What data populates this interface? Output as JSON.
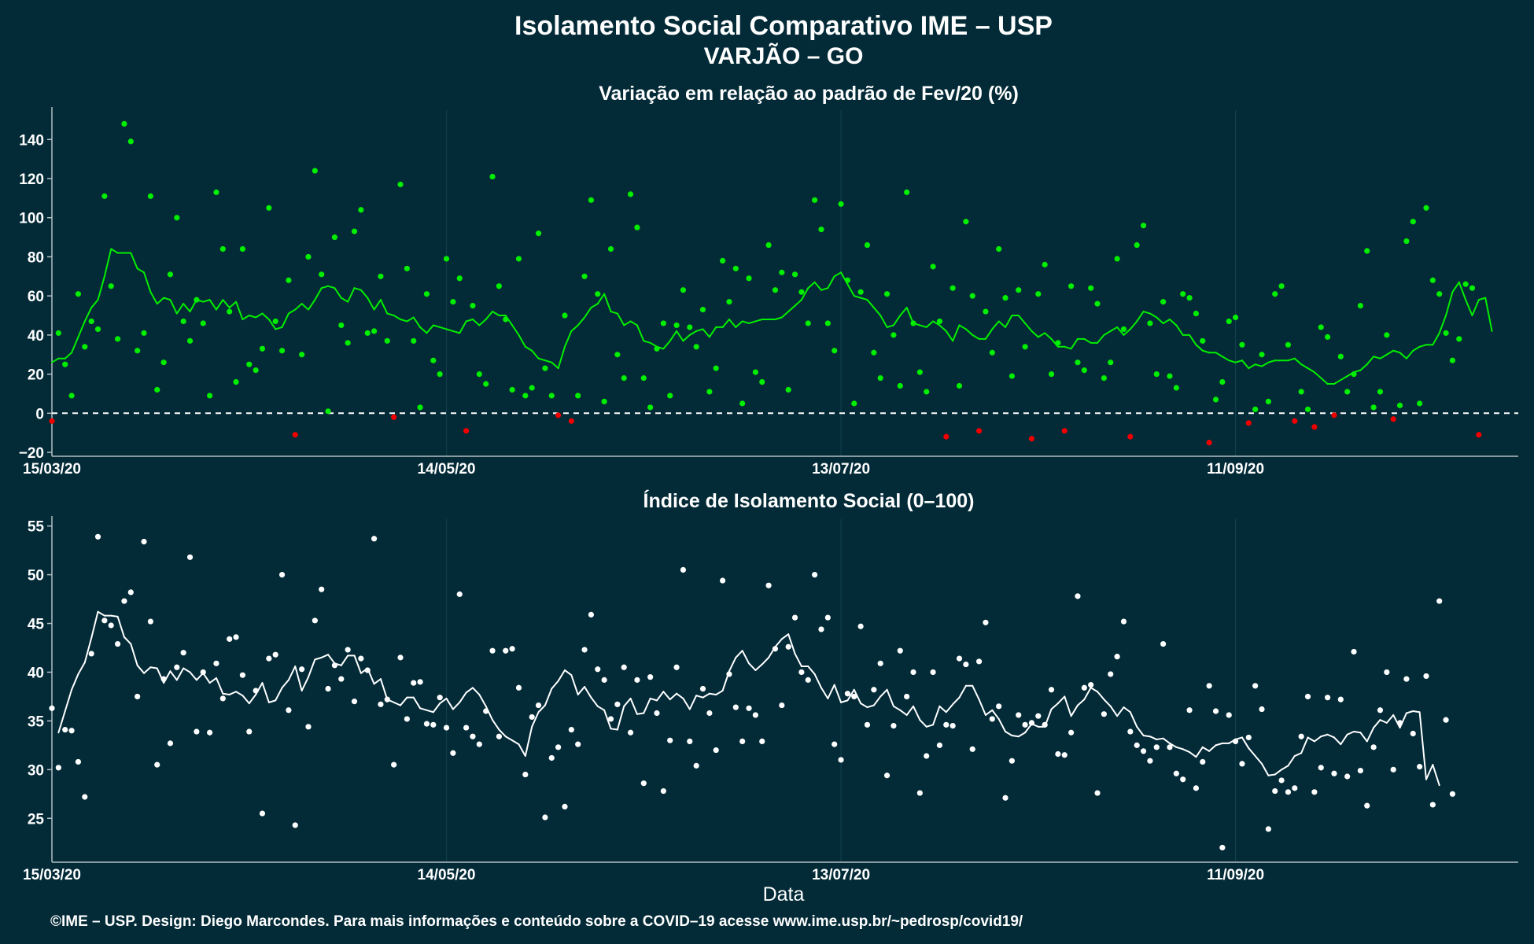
{
  "title": "Isolamento Social Comparativo IME – USP",
  "subtitle": "VARJÃO – GO",
  "x_axis_label": "Data",
  "footer": "©IME – USP. Design: Diego Marcondes. Para mais informações e conteúdo sobre a COVID–19 acesse www.ime.usp.br/~pedrosp/covid19/",
  "colors": {
    "background": "#022a37",
    "positive": "#00ee00",
    "negative": "#ee0000",
    "index": "#ffffff",
    "zero_line": "#ffffff"
  },
  "chart_data": [
    {
      "type": "scatter",
      "title": "Variação em relação ao padrão de Fev/20 (%)",
      "xlim": [
        "2020-03-15",
        "2020-10-24"
      ],
      "x_ticks": [
        "15/03/20",
        "14/05/20",
        "13/07/20",
        "11/09/20"
      ],
      "ylim": [
        -22,
        155
      ],
      "y_ticks": [
        -20,
        0,
        20,
        40,
        60,
        80,
        100,
        120,
        140
      ],
      "reference_line": 0,
      "points_start": "2020-03-15",
      "moving_average_start": "2020-03-15",
      "points": [
        -4,
        41,
        25,
        9,
        61,
        34,
        47,
        43,
        111,
        65,
        38,
        148,
        139,
        32,
        41,
        111,
        12,
        26,
        71,
        100,
        47,
        37,
        58,
        46,
        9,
        113,
        84,
        52,
        16,
        84,
        25,
        22,
        33,
        105,
        47,
        32,
        68,
        -11,
        30,
        80,
        124,
        71,
        1,
        90,
        45,
        36,
        93,
        104,
        41,
        42,
        70,
        37,
        -2,
        117,
        74,
        37,
        3,
        61,
        27,
        20,
        79,
        57,
        69,
        -9,
        55,
        20,
        15,
        121,
        65,
        48,
        12,
        79,
        9,
        13,
        92,
        23,
        9,
        -1,
        50,
        -4,
        9,
        70,
        109,
        61,
        6,
        84,
        30,
        18,
        112,
        95,
        18,
        3,
        33,
        46,
        9,
        45,
        63,
        44,
        34,
        53,
        11,
        23,
        78,
        57,
        74,
        5,
        69,
        21,
        16,
        86,
        63,
        72,
        12,
        71,
        62,
        46,
        109,
        94,
        46,
        32,
        107,
        68,
        5,
        62,
        86,
        31,
        18,
        61,
        40,
        14,
        113,
        46,
        21,
        11,
        75,
        47,
        -12,
        64,
        14,
        98,
        60,
        -9,
        52,
        31,
        84,
        59,
        19,
        63,
        34,
        -13,
        61,
        76,
        20,
        36,
        -9,
        65,
        26,
        22,
        64,
        56,
        18,
        26,
        79,
        43,
        -12,
        86,
        96,
        46,
        20,
        57,
        19,
        13,
        61,
        59,
        51,
        37,
        -15,
        7,
        16,
        47,
        49,
        35,
        -5,
        2,
        30,
        6,
        61,
        65,
        35,
        -4,
        11,
        2,
        -7,
        44,
        39,
        -1,
        29,
        11,
        20,
        55,
        83,
        3,
        11,
        40,
        -3,
        4,
        88,
        98,
        5,
        105,
        68,
        61,
        41,
        27,
        38,
        66,
        64,
        -11
      ],
      "moving_average": [
        26,
        28,
        28,
        31,
        39,
        47,
        54,
        58,
        70,
        84,
        82,
        82,
        82,
        74,
        72,
        62,
        56,
        59,
        58,
        51,
        56,
        52,
        58,
        57,
        58,
        53,
        58,
        54,
        57,
        48,
        50,
        49,
        51,
        48,
        43,
        44,
        51,
        53,
        56,
        53,
        58,
        64,
        65,
        64,
        59,
        57,
        64,
        63,
        59,
        53,
        58,
        51,
        50,
        48,
        47,
        49,
        44,
        41,
        45,
        44,
        43,
        42,
        41,
        47,
        48,
        45,
        48,
        52,
        50,
        50,
        45,
        40,
        34,
        32,
        28,
        27,
        26,
        23,
        34,
        42,
        45,
        49,
        54,
        56,
        61,
        52,
        51,
        45,
        47,
        45,
        37,
        36,
        34,
        33,
        37,
        42,
        37,
        40,
        42,
        43,
        39,
        44,
        44,
        48,
        44,
        47,
        46,
        47,
        48,
        48,
        48,
        49,
        52,
        55,
        58,
        64,
        67,
        63,
        64,
        70,
        72,
        66,
        60,
        59,
        58,
        54,
        50,
        44,
        45,
        50,
        54,
        46,
        45,
        44,
        47,
        45,
        42,
        37,
        45,
        43,
        40,
        38,
        38,
        43,
        47,
        44,
        50,
        50,
        46,
        42,
        39,
        41,
        38,
        34,
        34,
        33,
        38,
        38,
        36,
        36,
        40,
        42,
        44,
        40,
        43,
        47,
        52,
        51,
        49,
        46,
        48,
        45,
        40,
        40,
        35,
        32,
        31,
        31,
        29,
        27,
        26,
        27,
        23,
        25,
        24,
        26,
        27,
        27,
        27,
        28,
        25,
        23,
        21,
        18,
        15,
        15,
        17,
        19,
        21,
        22,
        25,
        29,
        28,
        30,
        32,
        31,
        28,
        32,
        34,
        35,
        35,
        41,
        50,
        62,
        67,
        58,
        50,
        58,
        59,
        42
      ]
    },
    {
      "type": "scatter",
      "title": "Índice de Isolamento Social (0–100)",
      "xlim": [
        "2020-03-15",
        "2020-10-24"
      ],
      "x_ticks": [
        "15/03/20",
        "14/05/20",
        "13/07/20",
        "11/09/20"
      ],
      "ylim": [
        20.5,
        55.7
      ],
      "y_ticks": [
        25,
        30,
        35,
        40,
        45,
        50,
        55
      ],
      "points_start": "2020-03-15",
      "moving_average_start": "2020-03-16",
      "points": [
        36.3,
        30.2,
        34.1,
        34,
        30.8,
        27.2,
        41.9,
        53.9,
        45.3,
        44.8,
        42.9,
        47.3,
        48.2,
        37.5,
        53.4,
        45.2,
        30.5,
        39.3,
        32.7,
        40.5,
        42,
        51.8,
        33.9,
        40,
        33.8,
        40.9,
        37.3,
        43.4,
        43.6,
        39.7,
        33.9,
        38.1,
        25.5,
        41.4,
        41.8,
        50,
        36.1,
        24.3,
        40.3,
        34.4,
        45.3,
        48.5,
        38.3,
        40.7,
        39.3,
        42.3,
        37,
        41.4,
        40.2,
        53.7,
        36.7,
        37.2,
        30.5,
        41.5,
        35.2,
        38.9,
        39,
        34.7,
        34.6,
        37.4,
        34.3,
        31.7,
        48,
        34.3,
        33.4,
        32.6,
        36,
        42.2,
        33.4,
        42.2,
        42.4,
        38.4,
        29.5,
        35.4,
        36.6,
        25.1,
        31.2,
        32.3,
        26.2,
        34.1,
        32.6,
        42.3,
        45.9,
        40.3,
        39.2,
        35.2,
        36.7,
        40.5,
        33.8,
        39.2,
        28.6,
        39.5,
        35.8,
        27.8,
        33,
        40.5,
        50.5,
        32.9,
        30.4,
        38.3,
        35.8,
        32,
        49.4,
        39.8,
        36.4,
        32.9,
        36.3,
        35.6,
        32.9,
        48.9,
        42.4,
        36.6,
        42.6,
        45.6,
        40,
        39.2,
        50,
        44.4,
        45.6,
        32.6,
        31,
        37.8,
        37.5,
        44.7,
        34.6,
        38.2,
        40.9,
        29.4,
        34.5,
        42.2,
        37.5,
        40,
        27.6,
        31.4,
        40,
        32.5,
        34.6,
        34.5,
        41.4,
        40.8,
        32.1,
        41.1,
        45.1,
        35.2,
        36.5,
        27.1,
        30.9,
        35.6,
        34.6,
        34.8,
        35.5,
        34.6,
        38.2,
        31.6,
        31.5,
        33.8,
        47.8,
        38.4,
        38.7,
        27.6,
        35.7,
        39.8,
        41.6,
        45.2,
        33.9,
        32.5,
        31.9,
        30.9,
        32.3,
        42.9,
        32.3,
        29.6,
        29,
        36.1,
        28.1,
        30.8,
        38.6,
        36,
        22,
        35.6,
        32.9,
        30.6,
        33.3,
        38.6,
        36.2,
        23.9,
        27.8,
        28.9,
        27.7,
        28.1,
        33.4,
        37.5,
        27.7,
        30.2,
        37.4,
        29.6,
        37.2,
        29.3,
        42.1,
        29.9,
        26.3,
        32.3,
        36.1,
        40,
        30,
        34.8,
        39.3,
        33.7,
        30.3,
        39.6,
        26.4,
        47.3,
        35.1,
        27.5
      ],
      "moving_average": [
        33.8,
        36,
        38.2,
        39.8,
        41,
        43.5,
        46.2,
        45.8,
        45.8,
        45.7,
        43.6,
        42.9,
        40.7,
        39.9,
        40.5,
        40.4,
        38.9,
        40.1,
        39.2,
        40.4,
        40,
        39.2,
        39.9,
        38.9,
        39.4,
        37.8,
        37.7,
        38,
        37.6,
        36.8,
        37.7,
        38.9,
        36.9,
        37.1,
        38.4,
        39.2,
        40.6,
        38.1,
        39.5,
        41.3,
        41.5,
        41.8,
        40.9,
        40.7,
        41.7,
        41.7,
        39.9,
        40.4,
        38.8,
        39.3,
        37.2,
        36.9,
        36.6,
        37.4,
        37.4,
        36.3,
        36.1,
        35.9,
        36.8,
        37.3,
        36.2,
        36.9,
        37.9,
        38.4,
        37.7,
        36.5,
        35.1,
        34.1,
        33.4,
        33,
        32.6,
        31.4,
        34.4,
        35.9,
        36.6,
        38.3,
        39.1,
        40.2,
        39.7,
        37.7,
        38.5,
        37.4,
        36.5,
        36.1,
        34.2,
        34.1,
        36.5,
        37.3,
        35.7,
        35.8,
        37.3,
        37.1,
        38,
        37.2,
        37.8,
        37.3,
        36.2,
        37.6,
        37.4,
        37.8,
        37.7,
        38.1,
        40.1,
        41.5,
        42.2,
        40.9,
        40.2,
        40.8,
        41.5,
        42.6,
        43.4,
        43.9,
        41.9,
        40.6,
        40.6,
        39.8,
        38.4,
        37.3,
        38.7,
        36.9,
        37.1,
        38.2,
        36.8,
        36.4,
        36.6,
        37.5,
        38.2,
        36.5,
        36.1,
        35.6,
        36.5,
        35.1,
        34.4,
        34.6,
        36.5,
        35.9,
        36.7,
        37.4,
        38.6,
        38.6,
        37.2,
        35.6,
        36.1,
        35.2,
        33.9,
        33.5,
        33.4,
        33.8,
        34.7,
        34.4,
        34.4,
        36.2,
        36.8,
        37.5,
        35.5,
        36.6,
        37.2,
        38.4,
        38,
        37.2,
        36.5,
        35.5,
        36.4,
        35.9,
        34.4,
        33.5,
        33.4,
        33.1,
        33.2,
        32.7,
        32.3,
        32.1,
        31.8,
        31.3,
        32.3,
        31.9,
        32.5,
        32.7,
        32.7,
        33.1,
        33.3,
        32.2,
        31.4,
        30.6,
        29.4,
        29.5,
        30,
        30.4,
        31.4,
        31.7,
        33.3,
        32.9,
        33.4,
        33.6,
        33.3,
        32.6,
        33.6,
        33.9,
        33.8,
        32.9,
        34.3,
        35.1,
        34.8,
        35.6,
        34.3,
        35.8,
        36,
        35.9,
        29,
        30.5,
        28.4
      ]
    }
  ]
}
